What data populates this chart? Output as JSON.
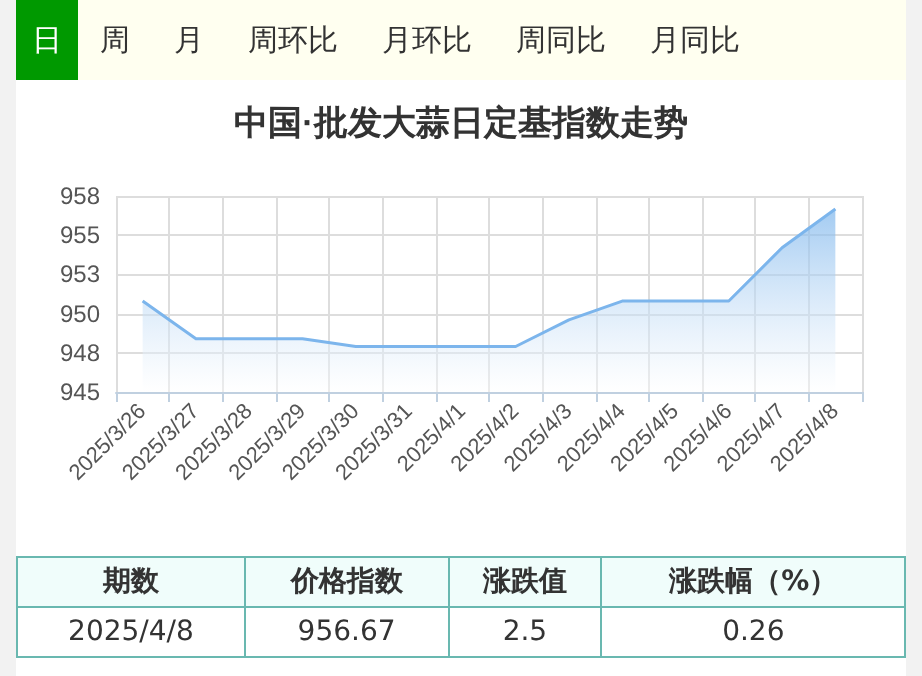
{
  "chart_data": {
    "type": "area",
    "title": "中国·批发大蒜日定基指数走势",
    "categories": [
      "2025/3/26",
      "2025/3/27",
      "2025/3/28",
      "2025/3/29",
      "2025/3/30",
      "2025/3/31",
      "2025/4/1",
      "2025/4/2",
      "2025/4/3",
      "2025/4/4",
      "2025/4/5",
      "2025/4/6",
      "2025/4/7",
      "2025/4/8"
    ],
    "series": [
      {
        "color": "#7cb5ec",
        "values": [
          950.8,
          948.4,
          948.4,
          948.4,
          947.9,
          947.9,
          947.9,
          947.9,
          949.6,
          950.8,
          950.8,
          950.8,
          954.2,
          956.67
        ]
      }
    ],
    "ylim": [
      945,
      957.5
    ],
    "yticks": [
      945,
      {
        "value": 947.5,
        "label": "948"
      },
      950,
      {
        "value": 952.5,
        "label": "953"
      },
      955,
      {
        "value": 957.5,
        "label": "958"
      }
    ],
    "grid": true,
    "marker": "none",
    "annotations": [
      "日",
      "周",
      "月",
      "周环比",
      "月环比",
      "周同比",
      "月同比",
      "期数",
      "价格指数",
      "涨跌值",
      "涨跌幅（%）",
      "2025/4/8",
      "956.67",
      "2.5",
      "0.26"
    ]
  }
}
